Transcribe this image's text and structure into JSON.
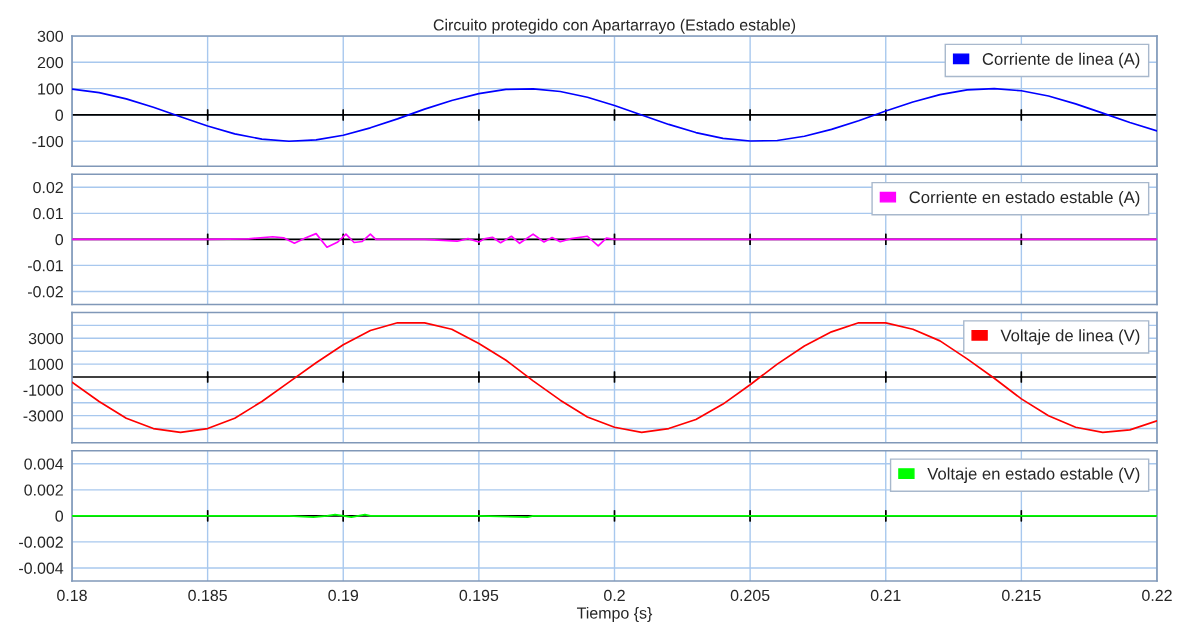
{
  "chart_data": [
    {
      "type": "line",
      "title": "Circuito protegido con Apartarrayo (Estado estable)",
      "xlim": [
        0.18,
        0.22
      ],
      "xticks": [
        0.18,
        0.185,
        0.19,
        0.195,
        0.2,
        0.205,
        0.21,
        0.215,
        0.22
      ],
      "ylim": [
        -195,
        300
      ],
      "yticks": [
        -100,
        0,
        100,
        200,
        300
      ],
      "tick_labels": "y",
      "grid": true,
      "legend": "top right",
      "ref_lines": [
        {
          "axis": "y",
          "value": 0,
          "color": "#000000"
        }
      ],
      "series": [
        {
          "name": "Corriente de linea (A)",
          "color": "#0000ff",
          "x": [
            0.18,
            0.181,
            0.182,
            0.183,
            0.184,
            0.185,
            0.186,
            0.187,
            0.188,
            0.189,
            0.19,
            0.191,
            0.192,
            0.193,
            0.194,
            0.195,
            0.196,
            0.197,
            0.198,
            0.199,
            0.2,
            0.201,
            0.202,
            0.203,
            0.204,
            0.205,
            0.206,
            0.207,
            0.208,
            0.209,
            0.21,
            0.211,
            0.212,
            0.213,
            0.214,
            0.215,
            0.216,
            0.217,
            0.218,
            0.219,
            0.22
          ],
          "values": [
            98,
            85,
            61,
            29,
            -7,
            -42,
            -72,
            -92,
            -100,
            -95,
            -77,
            -49,
            -15,
            22,
            55,
            81,
            97,
            99,
            89,
            67,
            36,
            0,
            -36,
            -67,
            -89,
            -99,
            -97,
            -81,
            -55,
            -22,
            15,
            49,
            77,
            95,
            100,
            92,
            72,
            42,
            7,
            -29,
            -61
          ]
        }
      ]
    },
    {
      "type": "line",
      "xlim": [
        0.18,
        0.22
      ],
      "xticks": [
        0.18,
        0.185,
        0.19,
        0.195,
        0.2,
        0.205,
        0.21,
        0.215,
        0.22
      ],
      "ylim": [
        -0.025,
        0.025
      ],
      "yticks": [
        -0.02,
        -0.01,
        0,
        0.01,
        0.02
      ],
      "tick_labels": "y",
      "grid": true,
      "legend": "top right",
      "ref_lines": [
        {
          "axis": "y",
          "value": 0,
          "color": "#000000"
        }
      ],
      "series": [
        {
          "name": "Corriente en estado estable (A)",
          "color": "#ff00ff",
          "x": [
            0.18,
            0.185,
            0.1865,
            0.1874,
            0.1878,
            0.1882,
            0.1886,
            0.189,
            0.1894,
            0.1898,
            0.1901,
            0.1904,
            0.1907,
            0.191,
            0.1912,
            0.193,
            0.1942,
            0.1946,
            0.195,
            0.1952,
            0.1955,
            0.1958,
            0.1962,
            0.1965,
            0.197,
            0.1974,
            0.1977,
            0.198,
            0.1984,
            0.199,
            0.1994,
            0.1997,
            0.2,
            0.22
          ],
          "values": [
            0,
            0,
            0.0002,
            0.001,
            0.0006,
            -0.0015,
            0.0005,
            0.0022,
            -0.003,
            -0.001,
            0.002,
            -0.0012,
            -0.0008,
            0.002,
            0,
            0,
            -0.0007,
            0.0003,
            -0.001,
            0.0002,
            0.0008,
            -0.0013,
            0.0012,
            -0.0015,
            0.002,
            -0.001,
            0.0007,
            -0.0009,
            0.0003,
            0.0012,
            -0.0025,
            0.0005,
            0,
            0
          ]
        }
      ]
    },
    {
      "type": "line",
      "xlim": [
        0.18,
        0.22
      ],
      "xticks": [
        0.18,
        0.185,
        0.19,
        0.195,
        0.2,
        0.205,
        0.21,
        0.215,
        0.22
      ],
      "ylim": [
        -5100,
        5000
      ],
      "yticks": [
        {
          "value": -4000,
          "label": null
        },
        -3000,
        {
          "value": -2000,
          "label": null
        },
        -1000,
        1000,
        {
          "value": 2000,
          "label": null
        },
        3000,
        {
          "value": 4000,
          "label": null
        }
      ],
      "tick_labels": "y",
      "grid": true,
      "legend": "top right",
      "ref_lines": [
        {
          "axis": "y",
          "value": 0,
          "color": "#000000"
        }
      ],
      "series": [
        {
          "name": "Voltaje de linea (V)",
          "color": "#ff0000",
          "x": [
            0.18,
            0.181,
            0.182,
            0.183,
            0.184,
            0.185,
            0.186,
            0.187,
            0.188,
            0.189,
            0.19,
            0.191,
            0.192,
            0.193,
            0.194,
            0.195,
            0.196,
            0.197,
            0.198,
            0.199,
            0.2,
            0.201,
            0.202,
            0.203,
            0.204,
            0.205,
            0.206,
            0.207,
            0.208,
            0.209,
            0.21,
            0.211,
            0.212,
            0.213,
            0.214,
            0.215,
            0.216,
            0.217,
            0.218,
            0.219,
            0.22
          ],
          "values": [
            -400,
            -1900,
            -3200,
            -4000,
            -4300,
            -4000,
            -3200,
            -1900,
            -400,
            1100,
            2500,
            3600,
            4200,
            4200,
            3700,
            2600,
            1300,
            -300,
            -1800,
            -3100,
            -3900,
            -4300,
            -4000,
            -3300,
            -2100,
            -600,
            1000,
            2400,
            3500,
            4200,
            4200,
            3700,
            2800,
            1400,
            -100,
            -1700,
            -3000,
            -3900,
            -4300,
            -4100,
            -3400
          ]
        }
      ]
    },
    {
      "type": "line",
      "xlabel": "Tiempo {s}",
      "xlim": [
        0.18,
        0.22
      ],
      "xticks": [
        0.18,
        0.185,
        0.19,
        0.195,
        0.2,
        0.205,
        0.21,
        0.215,
        0.22
      ],
      "ylim": [
        -0.005,
        0.005
      ],
      "yticks": [
        -0.004,
        -0.002,
        0,
        0.002,
        0.004
      ],
      "grid": true,
      "legend": "top right",
      "ref_lines": [
        {
          "axis": "y",
          "value": 0,
          "color": "#000000"
        }
      ],
      "series": [
        {
          "name": "Voltaje en estado estable (V)",
          "color": "#00ff00",
          "x": [
            0.18,
            0.188,
            0.1889,
            0.1894,
            0.1897,
            0.19,
            0.1903,
            0.1908,
            0.191,
            0.195,
            0.1968,
            0.197,
            0.2,
            0.22
          ],
          "values": [
            0,
            0,
            -0.0001,
            0,
            0.0001,
            0,
            -0.0001,
            0.0001,
            0,
            0,
            -0.0001,
            0,
            0,
            0
          ]
        }
      ]
    }
  ]
}
